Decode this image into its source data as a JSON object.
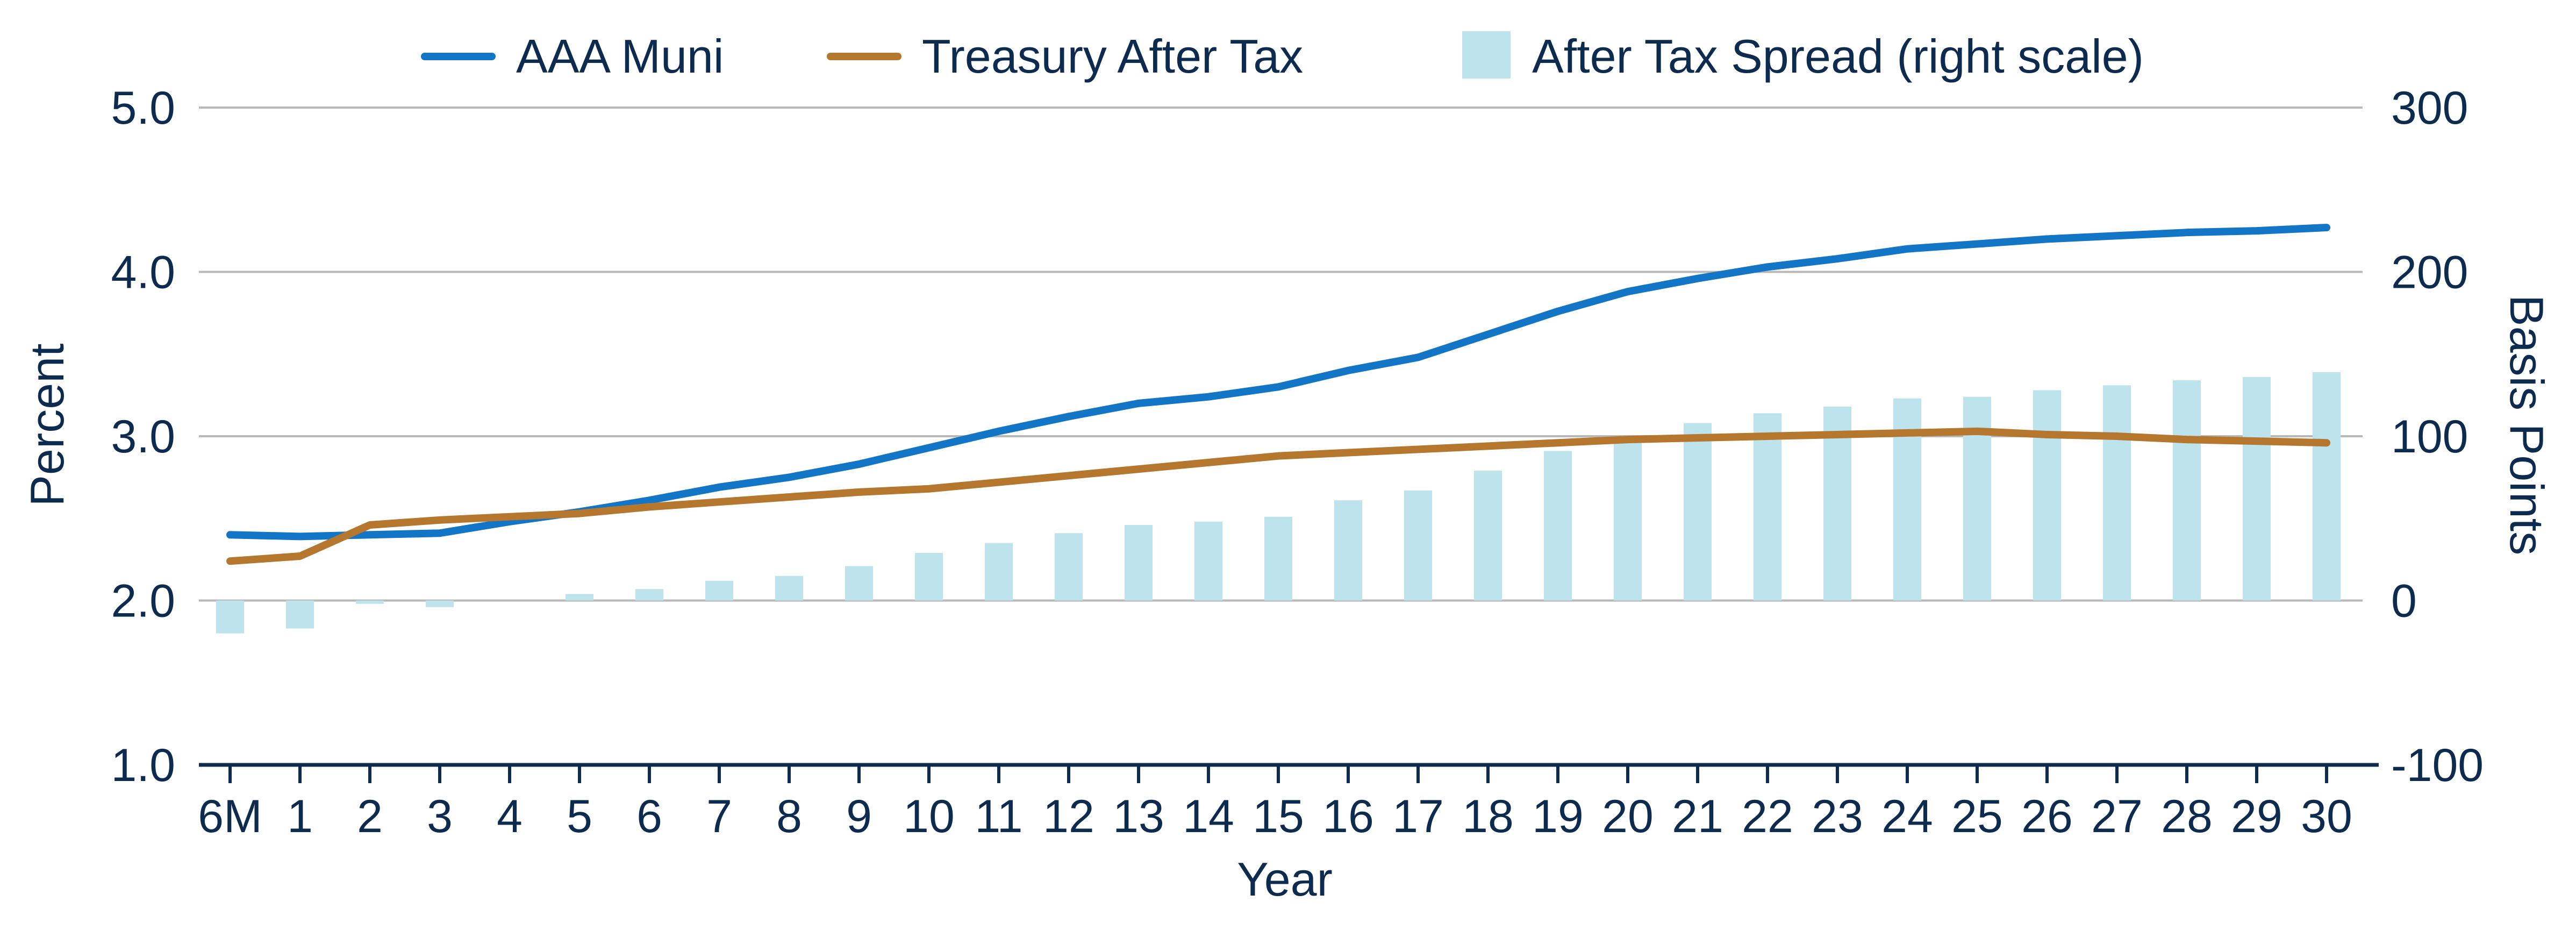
{
  "chart_data": {
    "type": "bar+line",
    "title": "",
    "xlabel": "Year",
    "ylabel_left": "Percent",
    "ylabel_right": "Basis Points",
    "categories": [
      "6M",
      "1",
      "2",
      "3",
      "4",
      "5",
      "6",
      "7",
      "8",
      "9",
      "10",
      "11",
      "12",
      "13",
      "14",
      "15",
      "16",
      "17",
      "18",
      "19",
      "20",
      "21",
      "22",
      "23",
      "24",
      "25",
      "26",
      "27",
      "28",
      "29",
      "30"
    ],
    "left_axis": {
      "range": [
        1.0,
        5.0
      ],
      "ticks": [
        "1.0",
        "2.0",
        "3.0",
        "4.0",
        "5.0"
      ]
    },
    "right_axis": {
      "range": [
        -100,
        300
      ],
      "ticks": [
        "-100",
        "0",
        "100",
        "200",
        "300"
      ]
    },
    "grid": true,
    "legend_position": "top",
    "series": [
      {
        "name": "AAA Muni",
        "type": "line",
        "axis": "left",
        "color": "#1375c5",
        "values": [
          2.4,
          2.39,
          2.4,
          2.41,
          2.48,
          2.54,
          2.61,
          2.69,
          2.75,
          2.83,
          2.93,
          3.03,
          3.12,
          3.2,
          3.24,
          3.3,
          3.4,
          3.48,
          3.62,
          3.76,
          3.88,
          3.96,
          4.03,
          4.08,
          4.14,
          4.17,
          4.2,
          4.22,
          4.24,
          4.25,
          4.27
        ]
      },
      {
        "name": "Treasury After Tax",
        "type": "line",
        "axis": "left",
        "color": "#b5762e",
        "values": [
          2.24,
          2.27,
          2.46,
          2.49,
          2.51,
          2.53,
          2.57,
          2.6,
          2.63,
          2.66,
          2.68,
          2.72,
          2.76,
          2.8,
          2.84,
          2.88,
          2.9,
          2.92,
          2.94,
          2.96,
          2.98,
          2.99,
          3.0,
          3.01,
          3.02,
          3.03,
          3.01,
          3.0,
          2.98,
          2.97,
          2.96
        ]
      },
      {
        "name": "After Tax Spread (right scale)",
        "type": "bar",
        "axis": "right",
        "color": "#bde3ec",
        "values": [
          -20,
          -17,
          -2,
          -4,
          0,
          4,
          7,
          12,
          15,
          21,
          29,
          35,
          41,
          46,
          48,
          51,
          61,
          67,
          79,
          91,
          97,
          108,
          114,
          118,
          123,
          124,
          128,
          131,
          134,
          136,
          139
        ]
      }
    ]
  }
}
